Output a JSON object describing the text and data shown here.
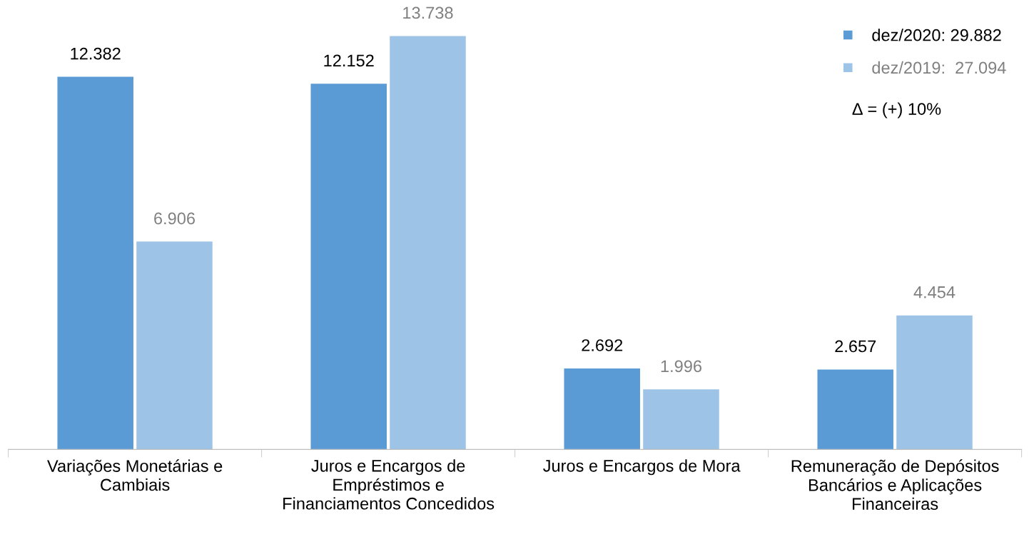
{
  "chart_data": {
    "type": "bar",
    "categories": [
      "Variações Monetárias e\nCambiais",
      "Juros e Encargos de\nEmpréstimos e\nFinanciamentos Concedidos",
      "Juros e Encargos de Mora",
      "Remuneração de Depósitos\nBancários e Aplicações\nFinanceiras"
    ],
    "series": [
      {
        "name": "dez/2020: 29.882",
        "color": "#5b9bd5",
        "values": [
          12382,
          12152,
          2692,
          2657
        ],
        "value_labels": [
          "12.382",
          "12.152",
          "2.692",
          "2.657"
        ]
      },
      {
        "name": "dez/2019:  27.094",
        "color": "#9dc3e6",
        "values": [
          6906,
          13738,
          1996,
          4454
        ],
        "value_labels": [
          "6.906",
          "13.738",
          "1.996",
          "4.454"
        ]
      }
    ],
    "annotations": [
      "∆ = (+) 10%"
    ],
    "legend": "top right",
    "grid": false
  }
}
